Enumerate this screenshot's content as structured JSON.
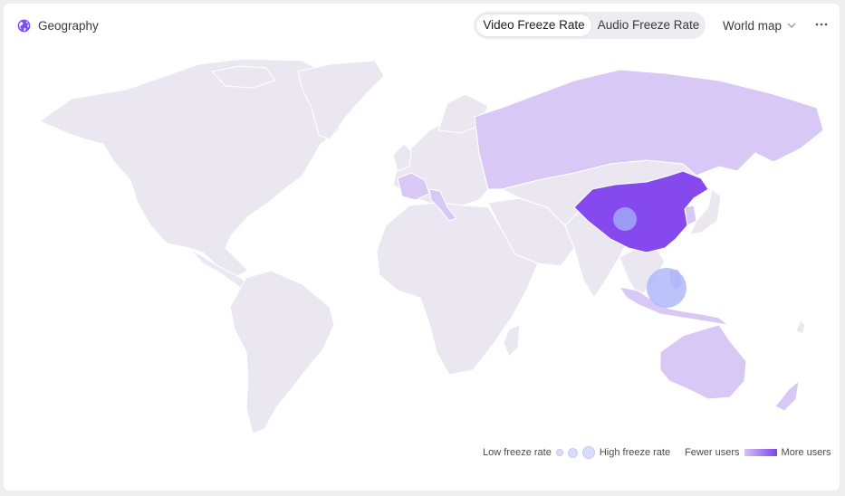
{
  "header": {
    "title": "Geography",
    "globe_icon": "globe-icon",
    "tabs": [
      {
        "label": "Video Freeze Rate",
        "active": true
      },
      {
        "label": "Audio Freeze Rate",
        "active": false
      }
    ],
    "view_select": {
      "value": "World map",
      "icon": "chevron-down-icon"
    },
    "more_icon": "more-horizontal-icon"
  },
  "legend": {
    "freeze_low": "Low freeze rate",
    "freeze_high": "High freeze rate",
    "users_low": "Fewer users",
    "users_high": "More users"
  },
  "colors": {
    "accent": "#7b4ff0",
    "country_default": "#ebe7f1",
    "country_low_users": "#d8c8f6",
    "country_high_users": "#8549ee",
    "bubble": "#a7b3f8"
  }
}
